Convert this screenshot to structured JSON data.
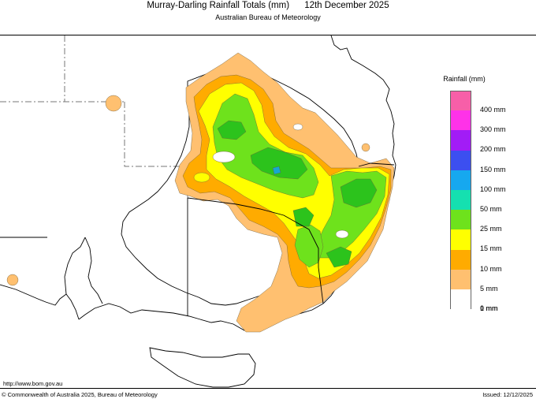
{
  "header": {
    "title": "Murray-Darling Rainfall Totals (mm)      12th December 2025",
    "subtitle": "Australian Bureau of Meteorology"
  },
  "legend": {
    "title": "Rainfall (mm)",
    "items": [
      {
        "label": "400 mm",
        "color": "#f75fa8"
      },
      {
        "label": "300 mm",
        "color": "#ff32e8"
      },
      {
        "label": "200 mm",
        "color": "#a21cf6"
      },
      {
        "label": "150 mm",
        "color": "#3c4ff0"
      },
      {
        "label": "100 mm",
        "color": "#16a8ef"
      },
      {
        "label": "50 mm",
        "color": "#15e0b0"
      },
      {
        "label": "25 mm",
        "color": "#6ee21c"
      },
      {
        "label": "15 mm",
        "color": "#ffff00"
      },
      {
        "label": "10 mm",
        "color": "#ffab00"
      },
      {
        "label": "5 mm",
        "color": "#ffc070"
      },
      {
        "label": "1 mm",
        "color": "#ffffff"
      },
      {
        "label": "0 mm",
        "color": ""
      }
    ]
  },
  "footer": {
    "website": "http://www.bom.gov.au",
    "copyright": "© Commonwealth of Australia 2025, Bureau of Meteorology",
    "issued": "Issued: 12/12/2025"
  },
  "colors": {
    "r1": "#ffc070",
    "r5": "#ffab00",
    "r10": "#ffff00",
    "r15": "#6ee21c",
    "r25": "#2cc31c",
    "r50": "#15e0b0",
    "boundary": "#000000"
  }
}
